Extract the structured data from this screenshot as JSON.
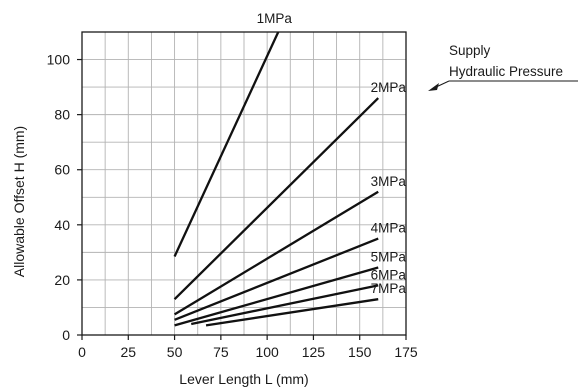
{
  "chart_data": {
    "type": "line",
    "title": "",
    "xlabel": "Lever Length L (mm)",
    "ylabel": "Allowable Offset H (mm)",
    "xlim": [
      0,
      175
    ],
    "ylim": [
      0,
      110
    ],
    "xticks": [
      0,
      25,
      50,
      75,
      100,
      125,
      150,
      175
    ],
    "yticks": [
      0,
      20,
      40,
      60,
      80,
      100
    ],
    "grid": true,
    "series": [
      {
        "name": "1MPa",
        "points": [
          [
            50,
            28.5
          ],
          [
            106,
            110
          ]
        ]
      },
      {
        "name": "2MPa",
        "points": [
          [
            50,
            13
          ],
          [
            160,
            86
          ]
        ]
      },
      {
        "name": "3MPa",
        "points": [
          [
            50,
            7.5
          ],
          [
            160,
            52
          ]
        ]
      },
      {
        "name": "4MPa",
        "points": [
          [
            50,
            5.5
          ],
          [
            160,
            35
          ]
        ]
      },
      {
        "name": "5MPa",
        "points": [
          [
            50,
            3.5
          ],
          [
            160,
            24.5
          ]
        ]
      },
      {
        "name": "6MPa",
        "points": [
          [
            59,
            4
          ],
          [
            160,
            18
          ]
        ]
      },
      {
        "name": "7MPa",
        "points": [
          [
            67,
            3.5
          ],
          [
            160,
            13
          ]
        ]
      }
    ],
    "annotation": {
      "lines": [
        "Supply",
        "Hydraulic Pressure"
      ]
    },
    "colors": {
      "line": "#111111",
      "grid": "#b3b3b3",
      "frame": "#1a1a1a",
      "text": "#1a1a1a"
    }
  }
}
